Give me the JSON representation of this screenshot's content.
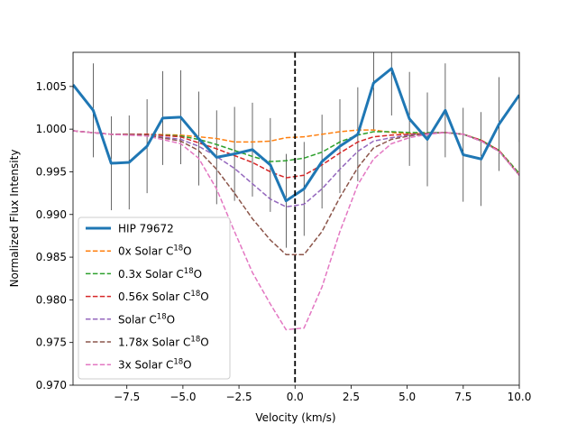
{
  "chart_data": {
    "type": "line",
    "title": "",
    "xlabel": "Velocity (km/s)",
    "ylabel": "Normalized Flux Intensity",
    "xlim": [
      -9.9,
      10.0
    ],
    "ylim": [
      0.97,
      1.009
    ],
    "xticks": [
      -7.5,
      -5.0,
      -2.5,
      0.0,
      2.5,
      5.0,
      7.5,
      10.0
    ],
    "xtick_labels": [
      "−7.5",
      "−5.0",
      "−2.5",
      "0.0",
      "2.5",
      "5.0",
      "7.5",
      "10.0"
    ],
    "yticks": [
      0.97,
      0.975,
      0.98,
      0.985,
      0.99,
      0.995,
      1.0,
      1.005
    ],
    "ytick_labels": [
      "0.970",
      "0.975",
      "0.980",
      "0.985",
      "0.990",
      "0.995",
      "1.000",
      "1.005"
    ],
    "grid": false,
    "legend_position": "lower-left",
    "vline": {
      "x": 0.0,
      "style": "dashed",
      "color": "#000000"
    },
    "observed": {
      "name": "HIP 79672",
      "color": "#1f77b4",
      "x": [
        -9.9,
        -9.0,
        -8.2,
        -7.4,
        -6.6,
        -5.9,
        -5.1,
        -4.3,
        -3.5,
        -2.7,
        -1.9,
        -1.1,
        -0.4,
        0.4,
        1.2,
        2.0,
        2.8,
        3.5,
        4.3,
        5.1,
        5.9,
        6.7,
        7.5,
        8.3,
        9.1,
        10.0
      ],
      "y": [
        1.0052,
        1.0022,
        0.996,
        0.9961,
        0.998,
        1.0013,
        1.0014,
        0.9989,
        0.9967,
        0.9971,
        0.9976,
        0.9958,
        0.9916,
        0.993,
        0.9962,
        0.998,
        0.9994,
        1.0054,
        1.0071,
        1.0012,
        0.9988,
        1.0022,
        0.997,
        0.9965,
        1.0006,
        1.004
      ],
      "err": 0.0055
    },
    "series": [
      {
        "name": "0x Solar C",
        "sup": "18",
        "suffix": "O",
        "color": "#ff7f0e",
        "x": [
          -9.9,
          -8.2,
          -6.6,
          -5.1,
          -3.5,
          -2.7,
          -1.9,
          -1.1,
          -0.4,
          0.4,
          1.2,
          2.0,
          2.8,
          3.5,
          4.3,
          5.1,
          5.9,
          6.7,
          7.5,
          8.3,
          9.1,
          10.0
        ],
        "y": [
          0.9998,
          0.9994,
          0.9994,
          0.9993,
          0.9989,
          0.9985,
          0.9985,
          0.9986,
          0.999,
          0.9991,
          0.9994,
          0.9997,
          0.9999,
          0.9999,
          0.9996,
          0.9995,
          0.9995,
          0.9996,
          0.9994,
          0.9987,
          0.9975,
          0.9948
        ]
      },
      {
        "name": "0.3x Solar C",
        "sup": "18",
        "suffix": "O",
        "color": "#2ca02c",
        "x": [
          -9.9,
          -8.2,
          -6.6,
          -5.1,
          -4.3,
          -3.5,
          -2.7,
          -1.9,
          -1.1,
          -0.4,
          0.4,
          1.2,
          2.0,
          2.8,
          3.5,
          4.3,
          5.1,
          5.9,
          6.7,
          7.5,
          8.3,
          9.1,
          10.0
        ],
        "y": [
          0.9998,
          0.9994,
          0.9994,
          0.9992,
          0.9988,
          0.9982,
          0.9975,
          0.9968,
          0.9962,
          0.9963,
          0.9966,
          0.9973,
          0.9985,
          0.9993,
          0.9997,
          0.9997,
          0.9996,
          0.9996,
          0.9996,
          0.9994,
          0.9987,
          0.9975,
          0.9948
        ]
      },
      {
        "name": "0.56x Solar C",
        "sup": "18",
        "suffix": "O",
        "color": "#d62728",
        "x": [
          -9.9,
          -8.2,
          -6.6,
          -5.1,
          -4.3,
          -3.5,
          -2.7,
          -1.9,
          -1.1,
          -0.4,
          0.4,
          1.2,
          2.0,
          2.8,
          3.5,
          4.3,
          5.1,
          5.9,
          6.7,
          7.5,
          8.3,
          9.1,
          10.0
        ],
        "y": [
          0.9998,
          0.9994,
          0.9994,
          0.9991,
          0.9984,
          0.9977,
          0.9969,
          0.9961,
          0.995,
          0.9943,
          0.9946,
          0.9958,
          0.9972,
          0.9985,
          0.9991,
          0.9993,
          0.9994,
          0.9995,
          0.9996,
          0.9994,
          0.9987,
          0.9975,
          0.9946
        ]
      },
      {
        "name": "Solar C",
        "sup": "18",
        "suffix": "O",
        "color": "#9467bd",
        "x": [
          -9.9,
          -8.2,
          -6.6,
          -5.1,
          -4.3,
          -3.5,
          -2.7,
          -1.9,
          -1.1,
          -0.4,
          0.4,
          1.2,
          2.0,
          2.8,
          3.5,
          4.3,
          5.1,
          5.9,
          6.7,
          7.5,
          8.3,
          9.1,
          10.0
        ],
        "y": [
          0.9998,
          0.9994,
          0.9993,
          0.9988,
          0.998,
          0.9968,
          0.9954,
          0.9936,
          0.9918,
          0.9909,
          0.9912,
          0.993,
          0.9953,
          0.9974,
          0.9986,
          0.999,
          0.9993,
          0.9995,
          0.9996,
          0.9994,
          0.9986,
          0.9974,
          0.9946
        ]
      },
      {
        "name": "1.78x Solar C",
        "sup": "18",
        "suffix": "O",
        "color": "#8c564b",
        "x": [
          -9.9,
          -8.2,
          -6.6,
          -5.1,
          -4.3,
          -3.5,
          -2.7,
          -1.9,
          -1.1,
          -0.4,
          0.4,
          1.2,
          2.0,
          2.8,
          3.5,
          4.3,
          5.1,
          5.9,
          6.7,
          7.5,
          8.3,
          9.1,
          10.0
        ],
        "y": [
          0.9998,
          0.9994,
          0.9993,
          0.9986,
          0.9975,
          0.9953,
          0.9925,
          0.9895,
          0.987,
          0.9853,
          0.9853,
          0.988,
          0.992,
          0.9955,
          0.9978,
          0.9988,
          0.9992,
          0.9995,
          0.9996,
          0.9994,
          0.9986,
          0.9974,
          0.9946
        ]
      },
      {
        "name": "3x Solar C",
        "sup": "18",
        "suffix": "O",
        "color": "#e377c2",
        "x": [
          -9.9,
          -8.2,
          -6.6,
          -5.1,
          -4.3,
          -3.5,
          -2.7,
          -1.9,
          -1.1,
          -0.4,
          0.4,
          1.2,
          2.0,
          2.8,
          3.5,
          4.3,
          5.1,
          5.9,
          6.7,
          7.5,
          8.3,
          9.1,
          10.0
        ],
        "y": [
          0.9998,
          0.9994,
          0.9992,
          0.9983,
          0.9966,
          0.993,
          0.988,
          0.9832,
          0.9795,
          0.9765,
          0.9767,
          0.9815,
          0.988,
          0.9935,
          0.9965,
          0.9983,
          0.999,
          0.9994,
          0.9996,
          0.9994,
          0.9986,
          0.9974,
          0.9946
        ]
      }
    ]
  }
}
